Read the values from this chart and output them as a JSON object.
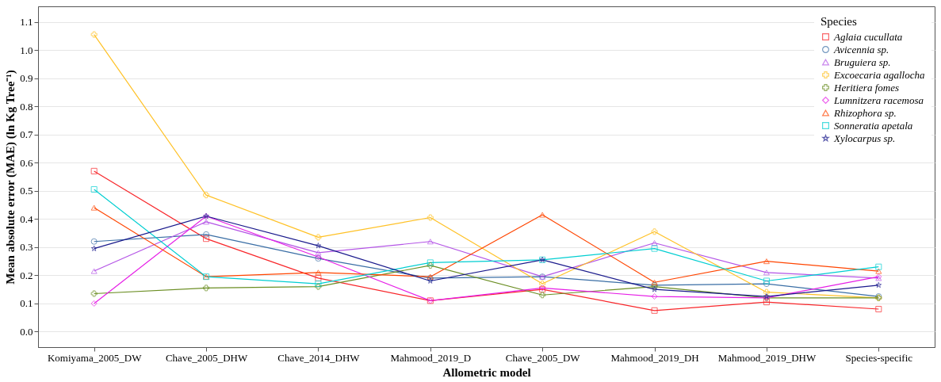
{
  "chart_data": {
    "type": "line",
    "xlabel": "Allometric model",
    "ylabel": "Mean absolute error (MAE) (ln Kg Tree⁻¹)",
    "legend_title": "Species",
    "categories": [
      "Komiyama_2005_DW",
      "Chave_2005_DHW",
      "Chave_2014_DHW",
      "Mahmood_2019_D",
      "Chave_2005_DW",
      "Mahmood_2019_DH",
      "Mahmood_2019_DHW",
      "Species-specific"
    ],
    "series": [
      {
        "name": "Aglaia cucullata",
        "color": "#f8262a",
        "marker": "square",
        "values": [
          0.57,
          0.33,
          0.19,
          0.11,
          0.15,
          0.075,
          0.105,
          0.08
        ]
      },
      {
        "name": "Avicennia sp.",
        "color": "#3a6ea5",
        "marker": "circle",
        "values": [
          0.32,
          0.345,
          0.26,
          0.19,
          0.195,
          0.165,
          0.17,
          0.125
        ]
      },
      {
        "name": "Bruguiera sp.",
        "color": "#b455e6",
        "marker": "triangle",
        "values": [
          0.215,
          0.39,
          0.28,
          0.32,
          0.195,
          0.315,
          0.21,
          0.19
        ]
      },
      {
        "name": "Excoecaria agallocha",
        "color": "#ffc125",
        "marker": "cross",
        "values": [
          1.055,
          0.485,
          0.335,
          0.405,
          0.17,
          0.355,
          0.14,
          0.12
        ]
      },
      {
        "name": "Heritiera fomes",
        "color": "#6b8e23",
        "marker": "cross",
        "values": [
          0.135,
          0.155,
          0.16,
          0.235,
          0.13,
          0.16,
          0.12,
          0.12
        ]
      },
      {
        "name": "Lumnitzera racemosa",
        "color": "#e61ee6",
        "marker": "diamond",
        "values": [
          0.1,
          0.41,
          0.265,
          0.11,
          0.155,
          0.125,
          0.12,
          0.195
        ]
      },
      {
        "name": "Rhizophora sp.",
        "color": "#ff4500",
        "marker": "triangle",
        "values": [
          0.44,
          0.195,
          0.21,
          0.195,
          0.415,
          0.175,
          0.25,
          0.215
        ]
      },
      {
        "name": "Sonneratia apetala",
        "color": "#00ced1",
        "marker": "square",
        "values": [
          0.505,
          0.195,
          0.17,
          0.245,
          0.255,
          0.295,
          0.18,
          0.23
        ]
      },
      {
        "name": "Xylocarpus sp.",
        "color": "#1a1a8c",
        "marker": "star",
        "values": [
          0.295,
          0.41,
          0.305,
          0.18,
          0.255,
          0.15,
          0.125,
          0.165
        ]
      }
    ],
    "ylim": [
      -0.055,
      1.155
    ],
    "yticks": [
      {
        "value": 0,
        "label": "0.0"
      },
      {
        "value": 0.1,
        "label": "0.1"
      },
      {
        "value": 0.2,
        "label": "0.2"
      },
      {
        "value": 0.3,
        "label": "0.3"
      },
      {
        "value": 0.4,
        "label": "0.4"
      },
      {
        "value": 0.5,
        "label": "0.5"
      },
      {
        "value": 0.6,
        "label": "0.6"
      },
      {
        "value": 0.7,
        "label": "0.7"
      },
      {
        "value": 0.8,
        "label": "0.8"
      },
      {
        "value": 0.9,
        "label": "0.9"
      },
      {
        "value": 1.0,
        "label": "1.0"
      },
      {
        "value": 1.1,
        "label": "1.1"
      }
    ],
    "grid": "y",
    "legend": "top right",
    "line_style": "solid"
  }
}
